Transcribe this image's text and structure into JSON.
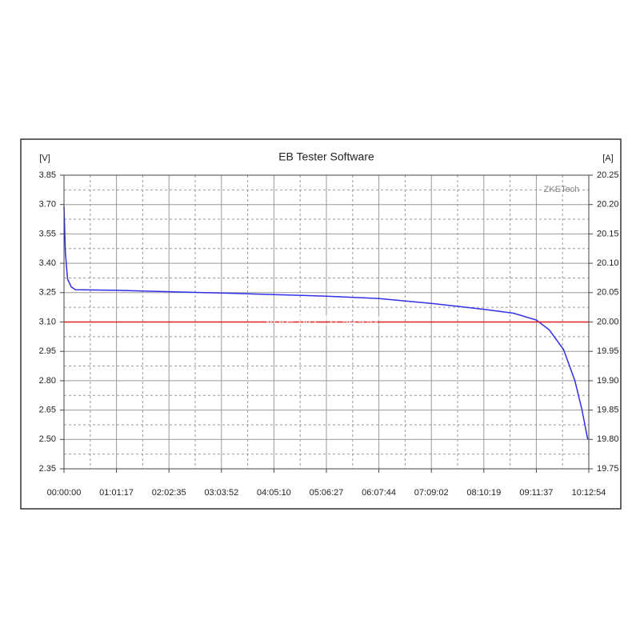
{
  "chart_data": {
    "type": "line",
    "title": "EB Tester Software",
    "y_label": "[V]",
    "y2_label": "[A]",
    "annotations": [
      "ZKETech",
      "Store No: 5794992"
    ],
    "grid": true,
    "xlim": [
      0,
      36774
    ],
    "xticks": [
      {
        "value": 0,
        "label": "00:00:00"
      },
      {
        "value": 3677,
        "label": "01:01:17"
      },
      {
        "value": 7355,
        "label": "02:02:35"
      },
      {
        "value": 11032,
        "label": "03:03:52"
      },
      {
        "value": 14710,
        "label": "04:05:10"
      },
      {
        "value": 18387,
        "label": "05:06:27"
      },
      {
        "value": 22064,
        "label": "06:07:44"
      },
      {
        "value": 25742,
        "label": "07:09:02"
      },
      {
        "value": 29419,
        "label": "08:10:19"
      },
      {
        "value": 33097,
        "label": "09:11:37"
      },
      {
        "value": 36774,
        "label": "10:12:54"
      }
    ],
    "ylim": [
      2.35,
      3.85
    ],
    "yticks": [
      2.35,
      {
        "value": 2.5,
        "label": "2.50"
      },
      2.65,
      {
        "value": 2.8,
        "label": "2.80"
      },
      2.95,
      {
        "value": 3.1,
        "label": "3.10"
      },
      3.25,
      {
        "value": 3.4,
        "label": "3.40"
      },
      3.55,
      {
        "value": 3.7,
        "label": "3.70"
      },
      3.85
    ],
    "y2lim": [
      19.75,
      20.25
    ],
    "y2ticks": [
      19.75,
      {
        "value": 19.8,
        "label": "19.80"
      },
      19.85,
      {
        "value": 19.9,
        "label": "19.90"
      },
      19.95,
      {
        "value": 20,
        "label": "20.00"
      },
      20.05,
      {
        "value": 20.1,
        "label": "20.10"
      },
      20.15,
      {
        "value": 20.2,
        "label": "20.20"
      },
      20.25
    ],
    "series": [
      {
        "color": "#3030e8",
        "x": [
          0,
          100,
          250,
          500,
          800,
          3677,
          7355,
          11032,
          14710,
          18387,
          22064,
          25742,
          29419,
          31500,
          33097,
          34000,
          35000,
          35800,
          36300,
          36700
        ],
        "values": [
          3.69,
          3.45,
          3.32,
          3.28,
          3.265,
          3.262,
          3.255,
          3.248,
          3.24,
          3.232,
          3.22,
          3.195,
          3.165,
          3.145,
          3.11,
          3.06,
          2.96,
          2.8,
          2.65,
          2.5
        ]
      },
      {
        "color": "#e02020",
        "axis": "y2",
        "x": [
          0,
          36774
        ],
        "values": [
          20,
          20
        ]
      }
    ]
  }
}
